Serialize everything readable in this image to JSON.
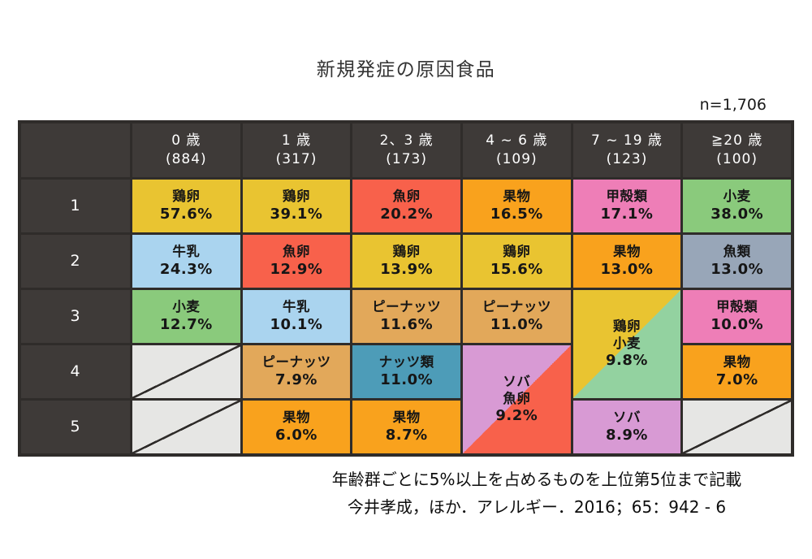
{
  "title": "新規発症の原因食品",
  "sample_size": "n=1,706",
  "footnote": "年齢群ごとに5%以上を占めるものを上位第5位まで記載",
  "citation": "今井孝成，ほか．アレルギー．2016；65：942 - 6",
  "colors": {
    "dark_cell": "#3e3a38",
    "grid_line": "#2f2c2a",
    "header_text": "#ffffff",
    "cell_text": "#161616",
    "title_text": "#333333",
    "yellow": "#e9c431",
    "red": "#f8614b",
    "lightblue": "#aad4ef",
    "green": "#8aca7c",
    "mint": "#93d2a0",
    "orange": "#f9a21d",
    "pink": "#ee7eb7",
    "bluegray": "#98a6b8",
    "tan": "#e2a85a",
    "teal": "#4d9cb8",
    "violet": "#d89ad4",
    "empty": "#e6e6e4"
  },
  "table": {
    "columns": [
      {
        "age": "0 歳",
        "count": "(884)"
      },
      {
        "age": "1 歳",
        "count": "(317)"
      },
      {
        "age": "2、3 歳",
        "count": "(173)"
      },
      {
        "age": "4 ~ 6 歳",
        "count": "(109)"
      },
      {
        "age": "7 ~ 19 歳",
        "count": "(123)"
      },
      {
        "age": "≧20 歳",
        "count": "(100)"
      }
    ],
    "ranks": [
      "1",
      "2",
      "3",
      "4",
      "5"
    ],
    "cells": {
      "row1": {
        "age0": {
          "food": "鶏卵",
          "pct": "57.6%",
          "color": "yellow"
        },
        "age1": {
          "food": "鶏卵",
          "pct": "39.1%",
          "color": "yellow"
        },
        "age2_3": {
          "food": "魚卵",
          "pct": "20.2%",
          "color": "red"
        },
        "age4_6": {
          "food": "果物",
          "pct": "16.5%",
          "color": "orange"
        },
        "age7_19": {
          "food": "甲殻類",
          "pct": "17.1%",
          "color": "pink"
        },
        "age20": {
          "food": "小麦",
          "pct": "38.0%",
          "color": "green"
        }
      },
      "row2": {
        "age0": {
          "food": "牛乳",
          "pct": "24.3%",
          "color": "lightblue"
        },
        "age1": {
          "food": "魚卵",
          "pct": "12.9%",
          "color": "red"
        },
        "age2_3": {
          "food": "鶏卵",
          "pct": "13.9%",
          "color": "yellow"
        },
        "age4_6": {
          "food": "鶏卵",
          "pct": "15.6%",
          "color": "yellow"
        },
        "age7_19": {
          "food": "果物",
          "pct": "13.0%",
          "color": "orange"
        },
        "age20": {
          "food": "魚類",
          "pct": "13.0%",
          "color": "bluegray"
        }
      },
      "row3": {
        "age0": {
          "food": "小麦",
          "pct": "12.7%",
          "color": "green"
        },
        "age1": {
          "food": "牛乳",
          "pct": "10.1%",
          "color": "lightblue"
        },
        "age2_3": {
          "food": "ピーナッツ",
          "pct": "11.6%",
          "color": "tan"
        },
        "age4_6": {
          "food": "ピーナッツ",
          "pct": "11.0%",
          "color": "tan"
        },
        "age7_19": {
          "food1": "鶏卵",
          "food2": "小麦",
          "pct": "9.8%",
          "split": [
            "yellow",
            "mint"
          ]
        },
        "age20": {
          "food": "甲殻類",
          "pct": "10.0%",
          "color": "pink"
        }
      },
      "row4": {
        "age0": {
          "empty": true
        },
        "age1": {
          "food": "ピーナッツ",
          "pct": "7.9%",
          "color": "tan"
        },
        "age2_3": {
          "food": "ナッツ類",
          "pct": "11.0%",
          "color": "teal"
        },
        "age4_6": {
          "food1": "ソバ",
          "food2": "魚卵",
          "pct": "9.2%",
          "split": [
            "violet",
            "red"
          ]
        },
        "age20": {
          "food": "果物",
          "pct": "7.0%",
          "color": "orange"
        }
      },
      "row5": {
        "age0": {
          "empty": true
        },
        "age1": {
          "food": "果物",
          "pct": "6.0%",
          "color": "orange"
        },
        "age2_3": {
          "food": "果物",
          "pct": "8.7%",
          "color": "orange"
        },
        "age7_19": {
          "food": "ソバ",
          "pct": "8.9%",
          "color": "violet"
        },
        "age20": {
          "empty": true
        }
      }
    }
  },
  "chart_data": {
    "type": "table",
    "title": "新規発症の原因食品",
    "n_total": 1706,
    "age_groups": [
      {
        "label": "0歳",
        "n": 884,
        "rankings": [
          {
            "rank": "1",
            "food": "鶏卵",
            "percent": 57.6
          },
          {
            "rank": "2",
            "food": "牛乳",
            "percent": 24.3
          },
          {
            "rank": "3",
            "food": "小麦",
            "percent": 12.7
          }
        ]
      },
      {
        "label": "1歳",
        "n": 317,
        "rankings": [
          {
            "rank": "1",
            "food": "鶏卵",
            "percent": 39.1
          },
          {
            "rank": "2",
            "food": "魚卵",
            "percent": 12.9
          },
          {
            "rank": "3",
            "food": "牛乳",
            "percent": 10.1
          },
          {
            "rank": "4",
            "food": "ピーナッツ",
            "percent": 7.9
          },
          {
            "rank": "5",
            "food": "果物",
            "percent": 6.0
          }
        ]
      },
      {
        "label": "2、3歳",
        "n": 173,
        "rankings": [
          {
            "rank": "1",
            "food": "魚卵",
            "percent": 20.2
          },
          {
            "rank": "2",
            "food": "鶏卵",
            "percent": 13.9
          },
          {
            "rank": "3",
            "food": "ピーナッツ",
            "percent": 11.6
          },
          {
            "rank": "4",
            "food": "ナッツ類",
            "percent": 11.0
          },
          {
            "rank": "5",
            "food": "果物",
            "percent": 8.7
          }
        ]
      },
      {
        "label": "4~6歳",
        "n": 109,
        "rankings": [
          {
            "rank": "1",
            "food": "果物",
            "percent": 16.5
          },
          {
            "rank": "2",
            "food": "鶏卵",
            "percent": 15.6
          },
          {
            "rank": "3",
            "food": "ピーナッツ",
            "percent": 11.0
          },
          {
            "rank": "4-5",
            "food": "ソバ・魚卵",
            "percent": 9.2
          }
        ]
      },
      {
        "label": "7~19歳",
        "n": 123,
        "rankings": [
          {
            "rank": "1",
            "food": "甲殻類",
            "percent": 17.1
          },
          {
            "rank": "2",
            "food": "果物",
            "percent": 13.0
          },
          {
            "rank": "3-4",
            "food": "鶏卵・小麦",
            "percent": 9.8
          },
          {
            "rank": "5",
            "food": "ソバ",
            "percent": 8.9
          }
        ]
      },
      {
        "label": "≧20歳",
        "n": 100,
        "rankings": [
          {
            "rank": "1",
            "food": "小麦",
            "percent": 38.0
          },
          {
            "rank": "2",
            "food": "魚類",
            "percent": 13.0
          },
          {
            "rank": "3",
            "food": "甲殻類",
            "percent": 10.0
          },
          {
            "rank": "4",
            "food": "果物",
            "percent": 7.0
          }
        ]
      }
    ],
    "footnote": "年齢群ごとに5%以上を占めるものを上位第5位まで記載",
    "source": "今井孝成，ほか．アレルギー．2016；65：942 - 6"
  }
}
